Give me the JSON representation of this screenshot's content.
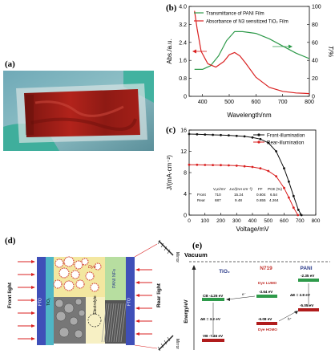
{
  "panels": {
    "a": "(a)",
    "b": "(b)",
    "c": "(c)",
    "d": "(d)",
    "e": "(e)"
  },
  "chart_data": [
    {
      "panel": "b",
      "type": "line",
      "xlabel": "Wavelength/nm",
      "ylabel_left": "Abs./a.u.",
      "ylabel_right": "T/%",
      "xlim": [
        350,
        800
      ],
      "ylim_left": [
        0,
        4.0
      ],
      "ylim_right": [
        0,
        100
      ],
      "xticks": [
        400,
        500,
        600,
        700,
        800
      ],
      "yticks_left": [
        "0",
        "0.8",
        "1.6",
        "2.4",
        "3.2",
        "4.0"
      ],
      "yticks_right": [
        "0",
        "20",
        "40",
        "60",
        "80",
        "100"
      ],
      "legend": [
        "Transmittance of PANI Film",
        "Absorbance of N3 sensitized TiO₂ Film"
      ],
      "series": [
        {
          "name": "Transmittance of PANI Film",
          "color": "#2e9a4a",
          "axis": "right",
          "x": [
            370,
            400,
            430,
            460,
            490,
            520,
            550,
            600,
            650,
            700,
            750,
            800
          ],
          "y": [
            30,
            30,
            34,
            45,
            62,
            72,
            72,
            70,
            64,
            56,
            48,
            42
          ]
        },
        {
          "name": "Absorbance of N3 sensitized TiO₂ Film",
          "color": "#d92020",
          "axis": "left",
          "x": [
            370,
            380,
            395,
            420,
            450,
            480,
            500,
            520,
            540,
            560,
            600,
            650,
            700,
            750,
            800
          ],
          "y": [
            3.8,
            3.0,
            2.0,
            1.45,
            1.3,
            1.55,
            1.85,
            1.95,
            1.8,
            1.5,
            0.85,
            0.4,
            0.22,
            0.15,
            0.12
          ]
        }
      ]
    },
    {
      "panel": "c",
      "type": "line",
      "xlabel": "Voltage/mV",
      "ylabel": "J/(mA·cm⁻²)",
      "xlim": [
        0,
        800
      ],
      "ylim": [
        0,
        16
      ],
      "xticks": [
        "0",
        "100",
        "200",
        "300",
        "400",
        "500",
        "600",
        "700",
        "800"
      ],
      "yticks": [
        "0",
        "4",
        "8",
        "12",
        "16"
      ],
      "legend": [
        "Front-illumination",
        "Rear-illumination"
      ],
      "series": [
        {
          "name": "Front-illumination",
          "color": "#111111",
          "x": [
            0,
            50,
            100,
            150,
            200,
            250,
            300,
            350,
            400,
            450,
            500,
            550,
            600,
            630,
            660,
            690,
            710
          ],
          "y": [
            15.24,
            15.2,
            15.15,
            15.1,
            15.05,
            15.0,
            14.9,
            14.8,
            14.6,
            14.3,
            13.6,
            12.0,
            8.8,
            6.3,
            3.6,
            1.0,
            0
          ]
        },
        {
          "name": "Rear-illumination",
          "color": "#d92020",
          "x": [
            0,
            50,
            100,
            150,
            200,
            250,
            300,
            350,
            400,
            450,
            500,
            550,
            600,
            630,
            660,
            687
          ],
          "y": [
            9.48,
            9.46,
            9.44,
            9.42,
            9.4,
            9.36,
            9.3,
            9.2,
            9.05,
            8.8,
            8.3,
            7.3,
            5.1,
            3.3,
            1.4,
            0
          ]
        }
      ],
      "table": {
        "headers": [
          "",
          "Vₒc/mV",
          "Jₛc/(mA cm⁻²)",
          "FF",
          "PCE (%)"
        ],
        "rows": [
          [
            "Front",
            "710",
            "15.24",
            "0.604",
            "6.54"
          ],
          [
            "Rear",
            "687",
            "9.48",
            "0.655",
            "4.264"
          ]
        ]
      }
    }
  ],
  "device": {
    "front_light": "Front light",
    "rear_light": "Rear light",
    "fto_left": "FTO",
    "tio2": "TiO₂",
    "dye": "Dye",
    "electrolyte": "Electrolyte",
    "pani": "PANI NFs",
    "fto_right": "FTO",
    "mirror_top": "Mirror",
    "mirror_bottom": "Mirror",
    "e_label": "e⁻"
  },
  "energy": {
    "vacuum": "Vacuum",
    "ylabel": "Energy/eV",
    "col_tio2": "TiO₂",
    "col_n719": "N719",
    "col_pani": "PANI",
    "dye_lumo": "Dye LUMO",
    "dye_homo": "Dye HOMO",
    "cb": "CB -4.26 eV",
    "vb": "VB -7.46 eV",
    "lumo_val": "-3.64 eV",
    "homo_val": "-6.08 eV",
    "pani_top": "-2.35 eV",
    "pani_bottom": "-5.05 eV",
    "de1": "ΔE = 3.2 eV",
    "de2": "ΔE = 2.8 eV",
    "e_minus": "e⁻",
    "h_plus": "h⁺"
  }
}
